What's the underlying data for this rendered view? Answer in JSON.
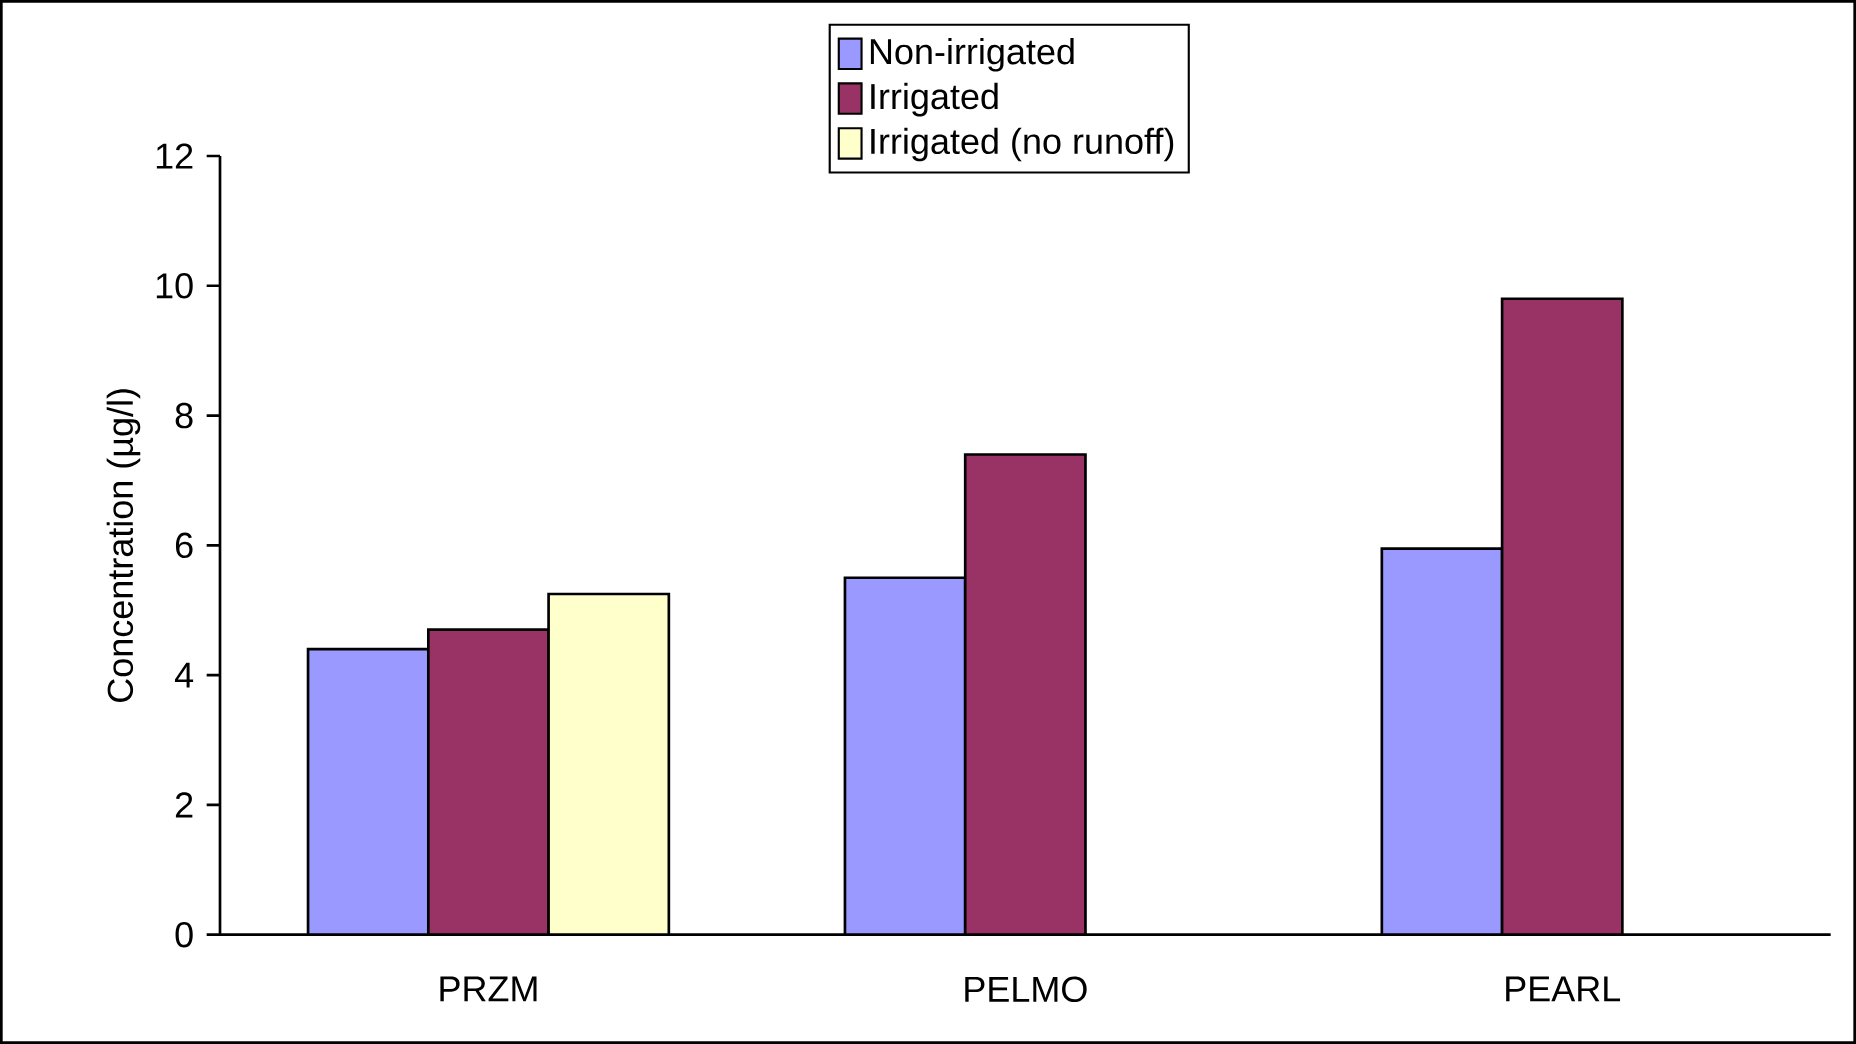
{
  "chart_data": {
    "type": "bar",
    "ylabel": "Concentration  (µg/l)",
    "categories": [
      "PRZM",
      "PELMO",
      "PEARL"
    ],
    "series": [
      {
        "name": "Non-irrigated",
        "color": "#9999ff",
        "values": [
          4.4,
          5.5,
          5.95
        ]
      },
      {
        "name": "Irrigated",
        "color": "#993366",
        "values": [
          4.7,
          7.4,
          9.8
        ]
      },
      {
        "name": "Irrigated (no runoff)",
        "color": "#ffffcc",
        "values": [
          5.25,
          null,
          null
        ]
      }
    ],
    "ylim": [
      0,
      12
    ],
    "yticks": [
      0,
      2,
      4,
      6,
      8,
      10,
      12
    ],
    "grid": false,
    "legend": "top"
  }
}
